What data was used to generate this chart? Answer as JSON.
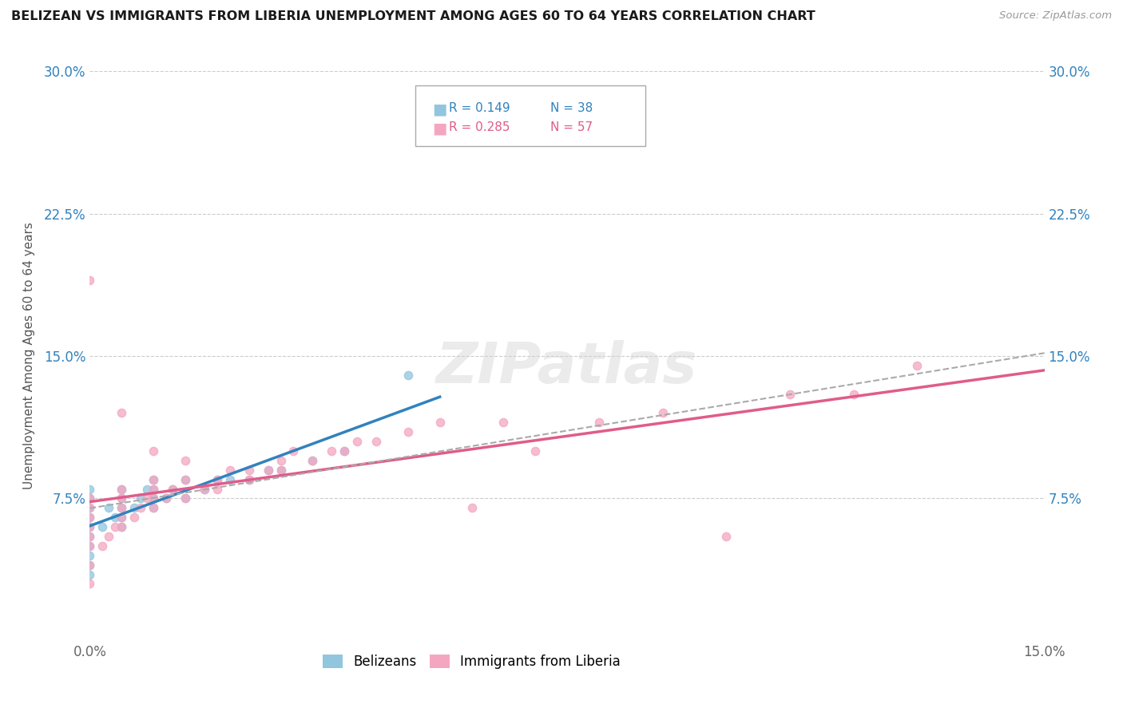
{
  "title": "BELIZEAN VS IMMIGRANTS FROM LIBERIA UNEMPLOYMENT AMONG AGES 60 TO 64 YEARS CORRELATION CHART",
  "source": "Source: ZipAtlas.com",
  "ylabel": "Unemployment Among Ages 60 to 64 years",
  "xlim": [
    0.0,
    0.15
  ],
  "ylim": [
    0.0,
    0.3
  ],
  "ytick_positions": [
    0.075,
    0.15,
    0.225,
    0.3
  ],
  "ytick_labels": [
    "7.5%",
    "15.0%",
    "22.5%",
    "30.0%"
  ],
  "xtick_positions": [
    0.0,
    0.15
  ],
  "xtick_labels": [
    "0.0%",
    "15.0%"
  ],
  "legend_labels": [
    "Belizeans",
    "Immigrants from Liberia"
  ],
  "color_blue": "#92c5de",
  "color_pink": "#f4a6c0",
  "color_blue_line": "#3182bd",
  "color_pink_line": "#e05c8a",
  "color_blue_text": "#3182bd",
  "color_pink_text": "#e05c8a",
  "color_dash": "#aaaaaa",
  "watermark_text": "ZIPatlas",
  "bel_x": [
    0.0,
    0.0,
    0.0,
    0.0,
    0.0,
    0.0,
    0.0,
    0.0,
    0.0,
    0.0,
    0.002,
    0.003,
    0.004,
    0.005,
    0.005,
    0.005,
    0.005,
    0.005,
    0.007,
    0.008,
    0.009,
    0.01,
    0.01,
    0.01,
    0.01,
    0.012,
    0.013,
    0.015,
    0.015,
    0.018,
    0.02,
    0.022,
    0.025,
    0.028,
    0.03,
    0.035,
    0.04,
    0.05
  ],
  "bel_y": [
    0.035,
    0.04,
    0.045,
    0.05,
    0.055,
    0.06,
    0.065,
    0.07,
    0.075,
    0.08,
    0.06,
    0.07,
    0.065,
    0.07,
    0.075,
    0.08,
    0.065,
    0.06,
    0.07,
    0.075,
    0.08,
    0.07,
    0.075,
    0.08,
    0.085,
    0.075,
    0.08,
    0.075,
    0.085,
    0.08,
    0.085,
    0.085,
    0.085,
    0.09,
    0.09,
    0.095,
    0.1,
    0.14
  ],
  "lib_x": [
    0.0,
    0.0,
    0.0,
    0.0,
    0.0,
    0.0,
    0.0,
    0.0,
    0.0,
    0.002,
    0.003,
    0.004,
    0.005,
    0.005,
    0.005,
    0.005,
    0.005,
    0.005,
    0.007,
    0.008,
    0.009,
    0.01,
    0.01,
    0.01,
    0.01,
    0.01,
    0.012,
    0.013,
    0.015,
    0.015,
    0.015,
    0.018,
    0.02,
    0.02,
    0.022,
    0.025,
    0.025,
    0.028,
    0.03,
    0.03,
    0.032,
    0.035,
    0.038,
    0.04,
    0.042,
    0.045,
    0.05,
    0.055,
    0.06,
    0.065,
    0.07,
    0.08,
    0.09,
    0.1,
    0.11,
    0.12,
    0.13
  ],
  "lib_y": [
    0.03,
    0.04,
    0.05,
    0.055,
    0.06,
    0.065,
    0.07,
    0.075,
    0.19,
    0.05,
    0.055,
    0.06,
    0.06,
    0.065,
    0.07,
    0.075,
    0.08,
    0.12,
    0.065,
    0.07,
    0.075,
    0.07,
    0.075,
    0.08,
    0.085,
    0.1,
    0.075,
    0.08,
    0.075,
    0.085,
    0.095,
    0.08,
    0.08,
    0.085,
    0.09,
    0.085,
    0.09,
    0.09,
    0.09,
    0.095,
    0.1,
    0.095,
    0.1,
    0.1,
    0.105,
    0.105,
    0.11,
    0.115,
    0.07,
    0.115,
    0.1,
    0.115,
    0.12,
    0.055,
    0.13,
    0.13,
    0.145
  ]
}
